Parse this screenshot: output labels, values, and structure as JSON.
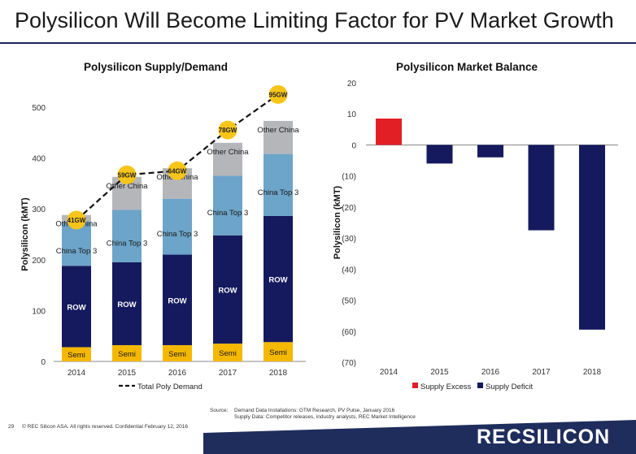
{
  "page": {
    "title": "Polysilicon Will Become Limiting Factor for PV Market Growth",
    "page_number": "29",
    "copyright": "© REC Silicon ASA. All rights reserved. Confidential",
    "date": "February 12, 2016",
    "source_label": "Source:",
    "source_line1": "Demand Data Installations: GTM Research, PV Pulse, January 2016",
    "source_line2": "Supply Data: Competitor releases, industry analysts, REC Market Intelligence",
    "logo": "RECSILICON",
    "colors": {
      "navy": "#1b1f63",
      "accent_red": "#e31f26",
      "footer_band": "#1f2d5c"
    }
  },
  "chart_data": [
    {
      "type": "bar",
      "stacked": true,
      "title": "Polysilicon Supply/Demand",
      "ylabel": "Polysilicon (kMT)",
      "xlabel": "",
      "ylim": [
        0,
        500
      ],
      "yticks": [
        0,
        100,
        200,
        300,
        400,
        500
      ],
      "grid": false,
      "legend_position": "bottom",
      "categories": [
        "2014",
        "2015",
        "2016",
        "2017",
        "2018"
      ],
      "series": [
        {
          "name": "Semi",
          "color": "#f5b800",
          "values": [
            28,
            32,
            32,
            35,
            38
          ],
          "labels": [
            "Semi",
            "Semi",
            "Semi",
            "Semi",
            "Semi"
          ]
        },
        {
          "name": "ROW",
          "color": "#151a5e",
          "values": [
            160,
            163,
            178,
            213,
            248
          ],
          "labels": [
            "ROW",
            "ROW",
            "ROW",
            "ROW",
            "ROW"
          ]
        },
        {
          "name": "China Top 3",
          "color": "#6da4c9",
          "values": [
            87,
            103,
            110,
            117,
            122
          ],
          "labels": [
            "China Top 3",
            "China Top 3",
            "China Top 3",
            "China Top 3",
            "China Top 3"
          ]
        },
        {
          "name": "Other China",
          "color": "#b4b6ba",
          "values": [
            13,
            65,
            60,
            65,
            65
          ],
          "labels": [
            "Other China",
            "Other China",
            "Other China",
            "Other China",
            "Other China"
          ]
        }
      ],
      "demand": {
        "name": "Total Poly Demand",
        "values": [
          278,
          367,
          375,
          455,
          525
        ],
        "labels": [
          "41GW",
          "59GW",
          "64GW",
          "78GW",
          "95GW"
        ],
        "marker_color": "#f7c519"
      }
    },
    {
      "type": "bar",
      "title": "Polysilicon Market Balance",
      "ylabel": "Polysilicon (kMT)",
      "xlabel": "",
      "ylim": [
        -70,
        20
      ],
      "yticks": [
        20,
        10,
        0,
        -10,
        -20,
        -30,
        -40,
        -50,
        -60,
        -70
      ],
      "ytick_labels": [
        "20",
        "10",
        "0",
        "(10)",
        "(20)",
        "(30)",
        "(40)",
        "(50)",
        "(60)",
        "(70)"
      ],
      "grid": false,
      "legend_position": "bottom",
      "categories": [
        "2014",
        "2015",
        "2016",
        "2017",
        "2018"
      ],
      "values": [
        8.5,
        -6,
        -4,
        -27.5,
        -59.5
      ],
      "legend": [
        {
          "name": "Supply Excess",
          "color": "#e31f26"
        },
        {
          "name": "Supply Deficit",
          "color": "#151a5e"
        }
      ]
    }
  ]
}
